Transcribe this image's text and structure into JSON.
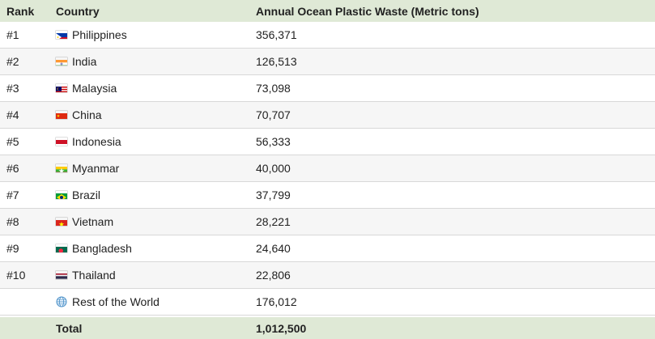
{
  "header": {
    "rank": "Rank",
    "country": "Country",
    "value": "Annual Ocean Plastic Waste (Metric tons)"
  },
  "rows": [
    {
      "rank": "#1",
      "country": "Philippines",
      "value": "356,371",
      "flag": "ph-flag"
    },
    {
      "rank": "#2",
      "country": "India",
      "value": "126,513",
      "flag": "in-flag"
    },
    {
      "rank": "#3",
      "country": "Malaysia",
      "value": "73,098",
      "flag": "my-flag"
    },
    {
      "rank": "#4",
      "country": "China",
      "value": "70,707",
      "flag": "cn-flag"
    },
    {
      "rank": "#5",
      "country": "Indonesia",
      "value": "56,333",
      "flag": "id-flag"
    },
    {
      "rank": "#6",
      "country": "Myanmar",
      "value": "40,000",
      "flag": "mm-flag"
    },
    {
      "rank": "#7",
      "country": "Brazil",
      "value": "37,799",
      "flag": "br-flag"
    },
    {
      "rank": "#8",
      "country": "Vietnam",
      "value": "28,221",
      "flag": "vn-flag"
    },
    {
      "rank": "#9",
      "country": "Bangladesh",
      "value": "24,640",
      "flag": "bd-flag"
    },
    {
      "rank": "#10",
      "country": "Thailand",
      "value": "22,806",
      "flag": "th-flag"
    },
    {
      "rank": "",
      "country": "Rest of the World",
      "value": "176,012",
      "flag": "globe-icon"
    }
  ],
  "total": {
    "rank": "",
    "country": "Total",
    "value": "1,012,500"
  },
  "colors": {
    "header_bg": "#dfe9d6",
    "alt_row_bg": "#f6f6f6",
    "row_border": "#d8d8d8"
  }
}
